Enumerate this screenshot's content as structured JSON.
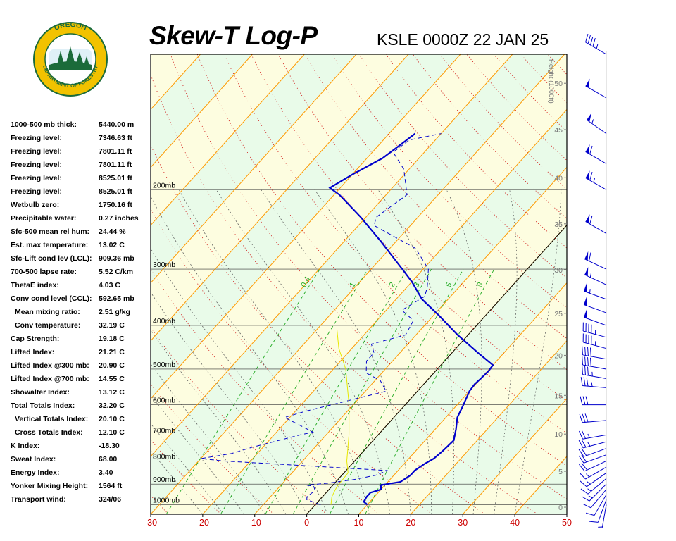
{
  "header": {
    "title": "Skew-T Log-P",
    "station": "KSLE 0000Z 22 JAN 25"
  },
  "logo": {
    "top_text": "OREGON",
    "bottom_text": "DEPARTMENT OF FORESTRY",
    "colors": {
      "ring": "#f2c200",
      "inner": "#1b6b3a",
      "text": "#ffffff"
    }
  },
  "stats": [
    {
      "label": "1000-500 mb thick:",
      "value": "5440.00 m"
    },
    {
      "label": "Freezing level:",
      "value": "7346.63 ft"
    },
    {
      "label": "Freezing level:",
      "value": "7801.11 ft"
    },
    {
      "label": "Freezing level:",
      "value": "7801.11 ft"
    },
    {
      "label": "Freezing level:",
      "value": "8525.01 ft"
    },
    {
      "label": "Freezing level:",
      "value": "8525.01 ft"
    },
    {
      "label": "Wetbulb zero:",
      "value": "1750.16 ft"
    },
    {
      "label": "Precipitable water:",
      "value": "0.27 inches"
    },
    {
      "label": "Sfc-500 mean rel hum:",
      "value": "24.44 %"
    },
    {
      "label": "Est. max temperature:",
      "value": "13.02 C"
    },
    {
      "label": "Sfc-Lift cond lev (LCL):",
      "value": "909.36 mb"
    },
    {
      "label": "700-500 lapse rate:",
      "value": "5.52 C/km"
    },
    {
      "label": "ThetaE index:",
      "value": "4.03 C"
    },
    {
      "label": "Conv cond level (CCL):",
      "value": "592.65 mb"
    },
    {
      "label": "Mean mixing ratio:",
      "value": "2.51 g/kg",
      "indent": true
    },
    {
      "label": "Conv temperature:",
      "value": "32.19 C",
      "indent": true
    },
    {
      "label": "Cap Strength:",
      "value": "19.18 C"
    },
    {
      "label": "Lifted Index:",
      "value": "21.21 C"
    },
    {
      "label": "Lifted Index @300 mb:",
      "value": "20.90 C"
    },
    {
      "label": "Lifted Index @700 mb:",
      "value": "14.55 C"
    },
    {
      "label": "Showalter Index:",
      "value": "13.12 C"
    },
    {
      "label": "Total Totals Index:",
      "value": "32.20 C"
    },
    {
      "label": "Vertical Totals Index:",
      "value": "20.10 C",
      "indent": true
    },
    {
      "label": "Cross Totals Index:",
      "value": "12.10 C",
      "indent": true
    },
    {
      "label": "K Index:",
      "value": "-18.30"
    },
    {
      "label": "Sweat Index:",
      "value": "68.00"
    },
    {
      "label": "Energy Index:",
      "value": "3.40"
    },
    {
      "label": "Yonker Mixing Height:",
      "value": "1564 ft"
    },
    {
      "label": "Transport wind:",
      "value": "324/06"
    }
  ],
  "chart_data": {
    "type": "line",
    "title": "Skew-T Log-P",
    "xlim": [
      -30,
      50
    ],
    "plim": [
      1050,
      100
    ],
    "x_ticks": [
      "-30",
      "-20",
      "-10",
      "0",
      "10",
      "20",
      "30",
      "40",
      "50"
    ],
    "pressure_labels": [
      {
        "p": 1000,
        "label": "1000mb"
      },
      {
        "p": 900,
        "label": "900mb"
      },
      {
        "p": 800,
        "label": "800mb"
      },
      {
        "p": 700,
        "label": "700mb"
      },
      {
        "p": 600,
        "label": "600mb"
      },
      {
        "p": 500,
        "label": "500mb"
      },
      {
        "p": 400,
        "label": "400mb"
      },
      {
        "p": 300,
        "label": "300mb"
      },
      {
        "p": 200,
        "label": "200mb"
      }
    ],
    "height_axis": {
      "label": "Height (1000ft)",
      "ticks": [
        {
          "p": 1013,
          "label": "0"
        },
        {
          "p": 843,
          "label": "5"
        },
        {
          "p": 697,
          "label": "10"
        },
        {
          "p": 572,
          "label": "15"
        },
        {
          "p": 466,
          "label": "20"
        },
        {
          "p": 376,
          "label": "25"
        },
        {
          "p": 301,
          "label": "30"
        },
        {
          "p": 238,
          "label": "35"
        },
        {
          "p": 188,
          "label": "40"
        },
        {
          "p": 147,
          "label": "45"
        },
        {
          "p": 116,
          "label": "50"
        }
      ]
    },
    "mixing_ratio_labels": [
      "0.4",
      "1",
      "2",
      "3",
      "5",
      "8"
    ],
    "mixing_ratios": [
      0.4,
      1,
      2,
      3,
      5,
      8
    ],
    "colors": {
      "temperature": "#0000cc",
      "dewpoint": "#0000cc",
      "parcel": "#e8e800",
      "isotherm": "#ff9900",
      "dry_adiabat": "#cc0000",
      "moist_adiabat": "#555555",
      "mixing_ratio": "#22aa22",
      "band_green": "#e9fbe9",
      "band_yellow": "#fdfde0",
      "x_tick_label": "#cc0000"
    },
    "series": [
      {
        "style": "solid",
        "points": [
          [
            1000,
            10
          ],
          [
            985,
            8.8
          ],
          [
            960,
            8.5
          ],
          [
            940,
            8.5
          ],
          [
            925,
            10
          ],
          [
            905,
            9.2
          ],
          [
            890,
            12.4
          ],
          [
            860,
            13.2
          ],
          [
            840,
            13.2
          ],
          [
            810,
            14
          ],
          [
            790,
            14.8
          ],
          [
            760,
            15.2
          ],
          [
            720,
            15.5
          ],
          [
            680,
            14
          ],
          [
            640,
            12.2
          ],
          [
            600,
            11.2
          ],
          [
            560,
            10
          ],
          [
            540,
            9.8
          ],
          [
            525,
            10
          ],
          [
            505,
            10.2
          ],
          [
            490,
            10
          ],
          [
            460,
            5
          ],
          [
            420,
            -2
          ],
          [
            380,
            -9
          ],
          [
            350,
            -15
          ],
          [
            320,
            -20
          ],
          [
            300,
            -24
          ],
          [
            260,
            -33
          ],
          [
            230,
            -41
          ],
          [
            205,
            -49
          ],
          [
            198,
            -52
          ],
          [
            185,
            -50
          ],
          [
            170,
            -47
          ],
          [
            160,
            -46
          ],
          [
            150,
            -45
          ]
        ]
      },
      {
        "style": "dashed",
        "points": [
          [
            1000,
            1
          ],
          [
            975,
            -2.5
          ],
          [
            960,
            -3
          ],
          [
            930,
            -2.5
          ],
          [
            910,
            -3.5
          ],
          [
            905,
            -5
          ],
          [
            895,
            -1
          ],
          [
            890,
            0.2
          ],
          [
            880,
            3
          ],
          [
            860,
            6.5
          ],
          [
            840,
            8
          ],
          [
            825,
            -4
          ],
          [
            800,
            -25
          ],
          [
            790,
            -30
          ],
          [
            770,
            -25
          ],
          [
            745,
            -22
          ],
          [
            700,
            -15
          ],
          [
            690,
            -13
          ],
          [
            640,
            -21
          ],
          [
            620,
            -18
          ],
          [
            560,
            -6
          ],
          [
            530,
            -9
          ],
          [
            510,
            -13
          ],
          [
            480,
            -15
          ],
          [
            460,
            -15
          ],
          [
            440,
            -17
          ],
          [
            420,
            -12
          ],
          [
            390,
            -13
          ],
          [
            370,
            -17
          ],
          [
            345,
            -15
          ],
          [
            330,
            -16
          ],
          [
            300,
            -19
          ],
          [
            270,
            -25
          ],
          [
            240,
            -37
          ],
          [
            230,
            -38
          ],
          [
            205,
            -36
          ],
          [
            180,
            -41
          ],
          [
            165,
            -46
          ],
          [
            155,
            -45
          ],
          [
            150,
            -40
          ]
        ]
      },
      {
        "style": "parcel",
        "points": [
          [
            1000,
            3
          ],
          [
            960,
            1.8
          ],
          [
            930,
            1.3
          ],
          [
            909,
            1
          ],
          [
            850,
            0.8
          ],
          [
            800,
            -1.5
          ],
          [
            700,
            -5.6
          ],
          [
            600,
            -10.8
          ],
          [
            500,
            -17.6
          ],
          [
            450,
            -22.5
          ],
          [
            410,
            -26
          ]
        ]
      }
    ]
  },
  "wind": {
    "label": "wind barbs",
    "barbs": [
      {
        "p": 1000,
        "dir": 190,
        "spd": 5
      },
      {
        "p": 975,
        "dir": 200,
        "spd": 10
      },
      {
        "p": 950,
        "dir": 210,
        "spd": 10
      },
      {
        "p": 925,
        "dir": 220,
        "spd": 10
      },
      {
        "p": 900,
        "dir": 225,
        "spd": 15
      },
      {
        "p": 875,
        "dir": 230,
        "spd": 15
      },
      {
        "p": 850,
        "dir": 235,
        "spd": 15
      },
      {
        "p": 825,
        "dir": 240,
        "spd": 15
      },
      {
        "p": 800,
        "dir": 245,
        "spd": 20
      },
      {
        "p": 775,
        "dir": 250,
        "spd": 20
      },
      {
        "p": 750,
        "dir": 250,
        "spd": 20
      },
      {
        "p": 725,
        "dir": 255,
        "spd": 25
      },
      {
        "p": 700,
        "dir": 260,
        "spd": 25
      },
      {
        "p": 650,
        "dir": 265,
        "spd": 30
      },
      {
        "p": 600,
        "dir": 270,
        "spd": 30
      },
      {
        "p": 550,
        "dir": 275,
        "spd": 35
      },
      {
        "p": 525,
        "dir": 280,
        "spd": 35
      },
      {
        "p": 500,
        "dir": 280,
        "spd": 40
      },
      {
        "p": 475,
        "dir": 280,
        "spd": 40
      },
      {
        "p": 450,
        "dir": 285,
        "spd": 45
      },
      {
        "p": 425,
        "dir": 285,
        "spd": 45
      },
      {
        "p": 400,
        "dir": 290,
        "spd": 50
      },
      {
        "p": 375,
        "dir": 290,
        "spd": 50
      },
      {
        "p": 350,
        "dir": 290,
        "spd": 55
      },
      {
        "p": 325,
        "dir": 295,
        "spd": 55
      },
      {
        "p": 300,
        "dir": 295,
        "spd": 60
      },
      {
        "p": 250,
        "dir": 300,
        "spd": 60
      },
      {
        "p": 200,
        "dir": 300,
        "spd": 65
      },
      {
        "p": 175,
        "dir": 300,
        "spd": 60
      },
      {
        "p": 150,
        "dir": 305,
        "spd": 55
      },
      {
        "p": 125,
        "dir": 300,
        "spd": 50
      },
      {
        "p": 100,
        "dir": 300,
        "spd": 45
      }
    ]
  }
}
